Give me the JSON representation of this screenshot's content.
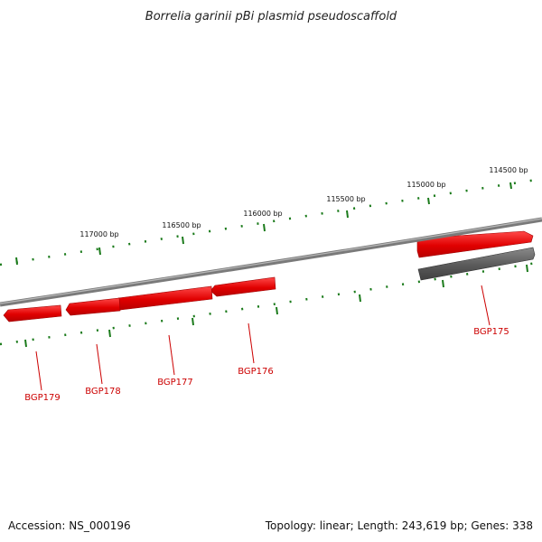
{
  "title": "Borrelia garinii pBi plasmid pseudoscaffold",
  "accession": "Accession: NS_000196",
  "summary": "Topology: linear; Length: 243,619 bp; Genes: 338",
  "tick_labels": [
    "114500 bp",
    "115000 bp",
    "115500 bp",
    "116000 bp",
    "116500 bp",
    "117000 bp"
  ],
  "genes": [
    {
      "name": "BGP175",
      "strand": "forward"
    },
    {
      "name": "BGP176",
      "strand": "reverse"
    },
    {
      "name": "BGP177",
      "strand": "reverse"
    },
    {
      "name": "BGP178",
      "strand": "reverse"
    },
    {
      "name": "BGP179",
      "strand": "reverse"
    }
  ],
  "colors": {
    "gene": "#e00000",
    "gene_highlight": "#ff5555",
    "backbone": "#7a7a7a",
    "selected_feature": "#555555",
    "ticks": "#1a7a1a",
    "gene_label": "#cc0000"
  }
}
